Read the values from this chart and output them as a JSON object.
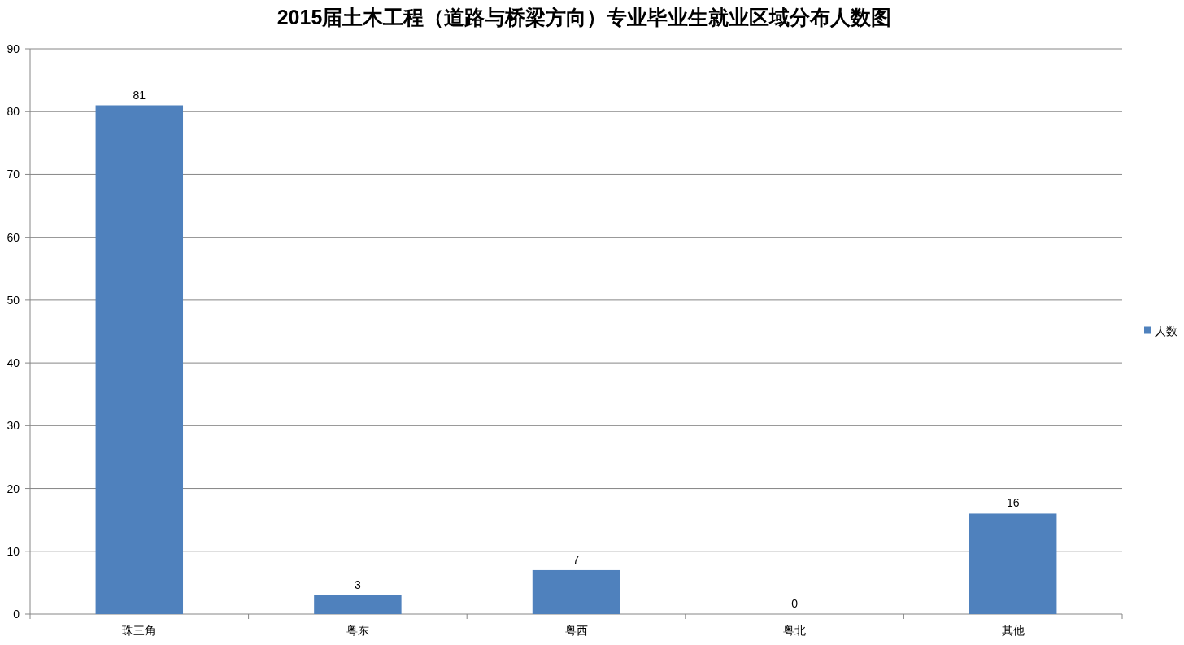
{
  "chart_data": {
    "type": "bar",
    "title": "2015届土木工程（道路与桥梁方向）专业毕业生就业区域分布人数图",
    "categories": [
      "珠三角",
      "粤东",
      "粤西",
      "粤北",
      "其他"
    ],
    "series": [
      {
        "name": "人数",
        "color": "#4f81bd",
        "values": [
          81,
          3,
          7,
          0,
          16
        ]
      }
    ],
    "ylim": [
      0,
      90
    ],
    "yticks": [
      0,
      10,
      20,
      30,
      40,
      50,
      60,
      70,
      80,
      90
    ],
    "grid": "y",
    "legend": "right",
    "data_labels": true
  }
}
